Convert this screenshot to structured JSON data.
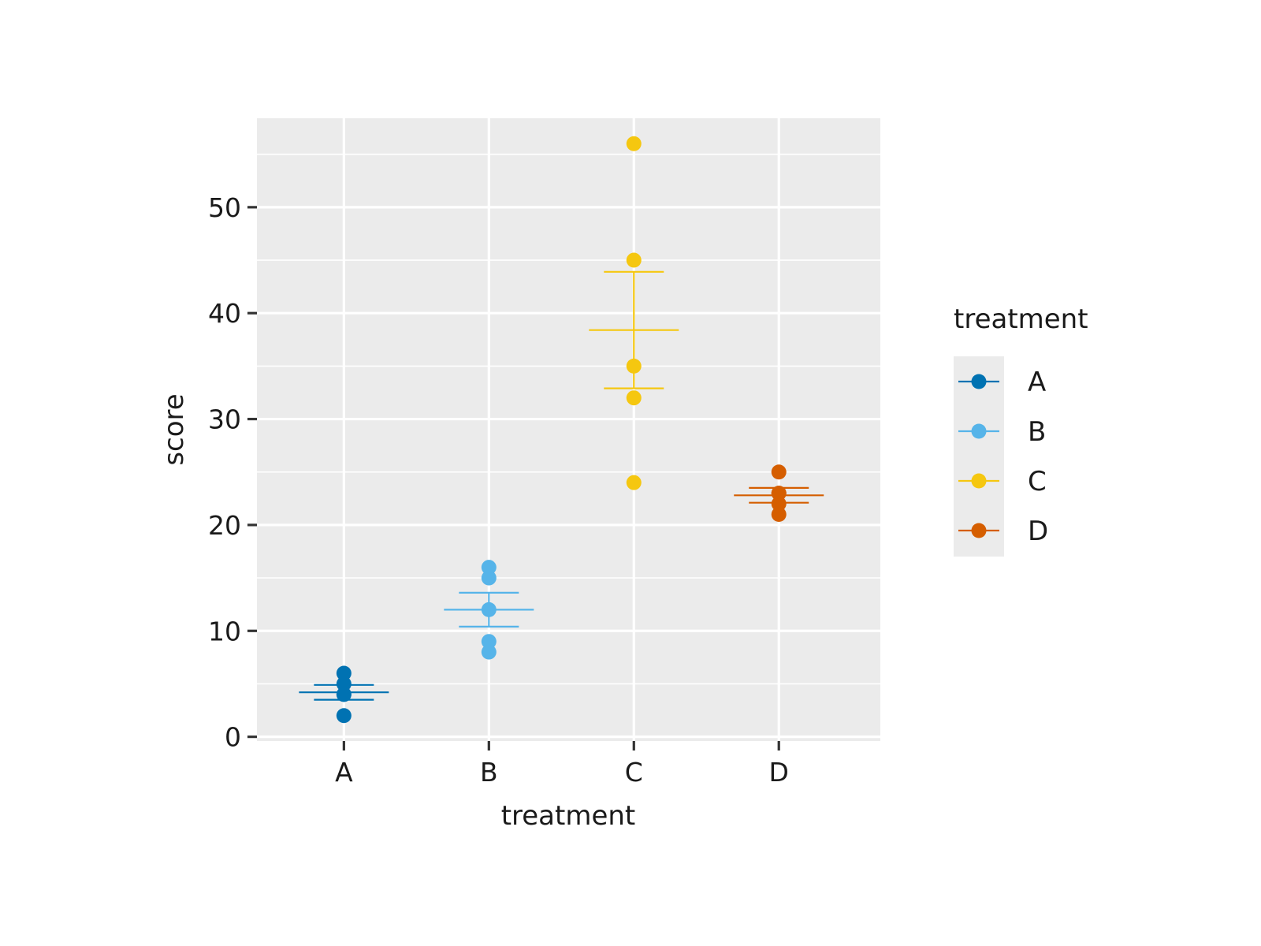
{
  "chart_data": {
    "type": "scatter",
    "xlabel": "treatment",
    "ylabel": "score",
    "categories": [
      "A",
      "B",
      "C",
      "D"
    ],
    "ylim": [
      -0.4,
      58.4
    ],
    "yticks": [
      0,
      10,
      20,
      30,
      40,
      50
    ],
    "grid": true,
    "legend": {
      "title": "treatment",
      "position": "right"
    },
    "series": [
      {
        "name": "A",
        "color": "#0072B2",
        "points": [
          2,
          4,
          4,
          5,
          6
        ],
        "mean": 4.2,
        "se_low": 3.5,
        "se_high": 4.9
      },
      {
        "name": "B",
        "color": "#56B4E9",
        "points": [
          8,
          9,
          12,
          15,
          16
        ],
        "mean": 12.0,
        "se_low": 10.4,
        "se_high": 13.6
      },
      {
        "name": "C",
        "color": "#F5C710",
        "points": [
          24,
          32,
          35,
          45,
          56
        ],
        "mean": 38.4,
        "se_low": 32.9,
        "se_high": 43.9
      },
      {
        "name": "D",
        "color": "#D55E00",
        "points": [
          21,
          22,
          23,
          23,
          25
        ],
        "mean": 22.8,
        "se_low": 22.1,
        "se_high": 23.5
      }
    ]
  }
}
